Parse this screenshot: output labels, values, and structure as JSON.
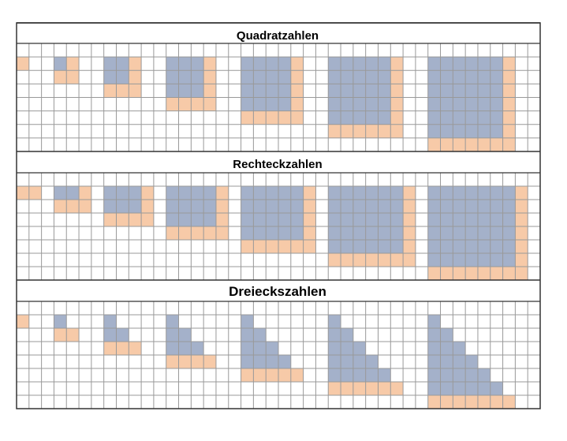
{
  "colors": {
    "grid_line": "#999999",
    "frame": "#333333",
    "blue": "#a4b1ca",
    "orange": "#f7caa8",
    "background": "#ffffff"
  },
  "panels": [
    {
      "id": "quadrat",
      "title": "Quadratzahlen",
      "figures": [
        {
          "blue": [],
          "orange": [
            [
              0,
              0
            ]
          ]
        },
        {
          "blue": [
            [
              0,
              0
            ]
          ],
          "orange": [
            [
              1,
              0
            ],
            [
              0,
              1
            ],
            [
              1,
              1
            ]
          ]
        },
        {
          "blue": [
            [
              0,
              0
            ],
            [
              1,
              0
            ],
            [
              0,
              1
            ],
            [
              1,
              1
            ]
          ],
          "orange": [
            [
              2,
              0
            ],
            [
              2,
              1
            ],
            [
              0,
              2
            ],
            [
              1,
              2
            ],
            [
              2,
              2
            ]
          ]
        },
        {
          "square": 4
        },
        {
          "square": 5
        },
        {
          "square": 6
        },
        {
          "square": 7
        }
      ]
    },
    {
      "id": "rechteck",
      "title": "Rechteckzahlen",
      "figures": [
        {
          "rect": [
            2,
            1
          ]
        },
        {
          "rect": [
            3,
            2
          ]
        },
        {
          "rect": [
            4,
            3
          ]
        },
        {
          "rect": [
            5,
            4
          ]
        },
        {
          "rect": [
            6,
            5
          ]
        },
        {
          "rect": [
            7,
            6
          ]
        },
        {
          "rect": [
            8,
            7
          ]
        }
      ]
    },
    {
      "id": "dreieck",
      "title": "Dreieckszahlen",
      "figures": [
        {
          "tri": 1
        },
        {
          "tri": 2
        },
        {
          "tri": 3
        },
        {
          "tri": 4
        },
        {
          "tri": 5
        },
        {
          "tri": 6
        },
        {
          "tri": 7
        }
      ]
    }
  ]
}
